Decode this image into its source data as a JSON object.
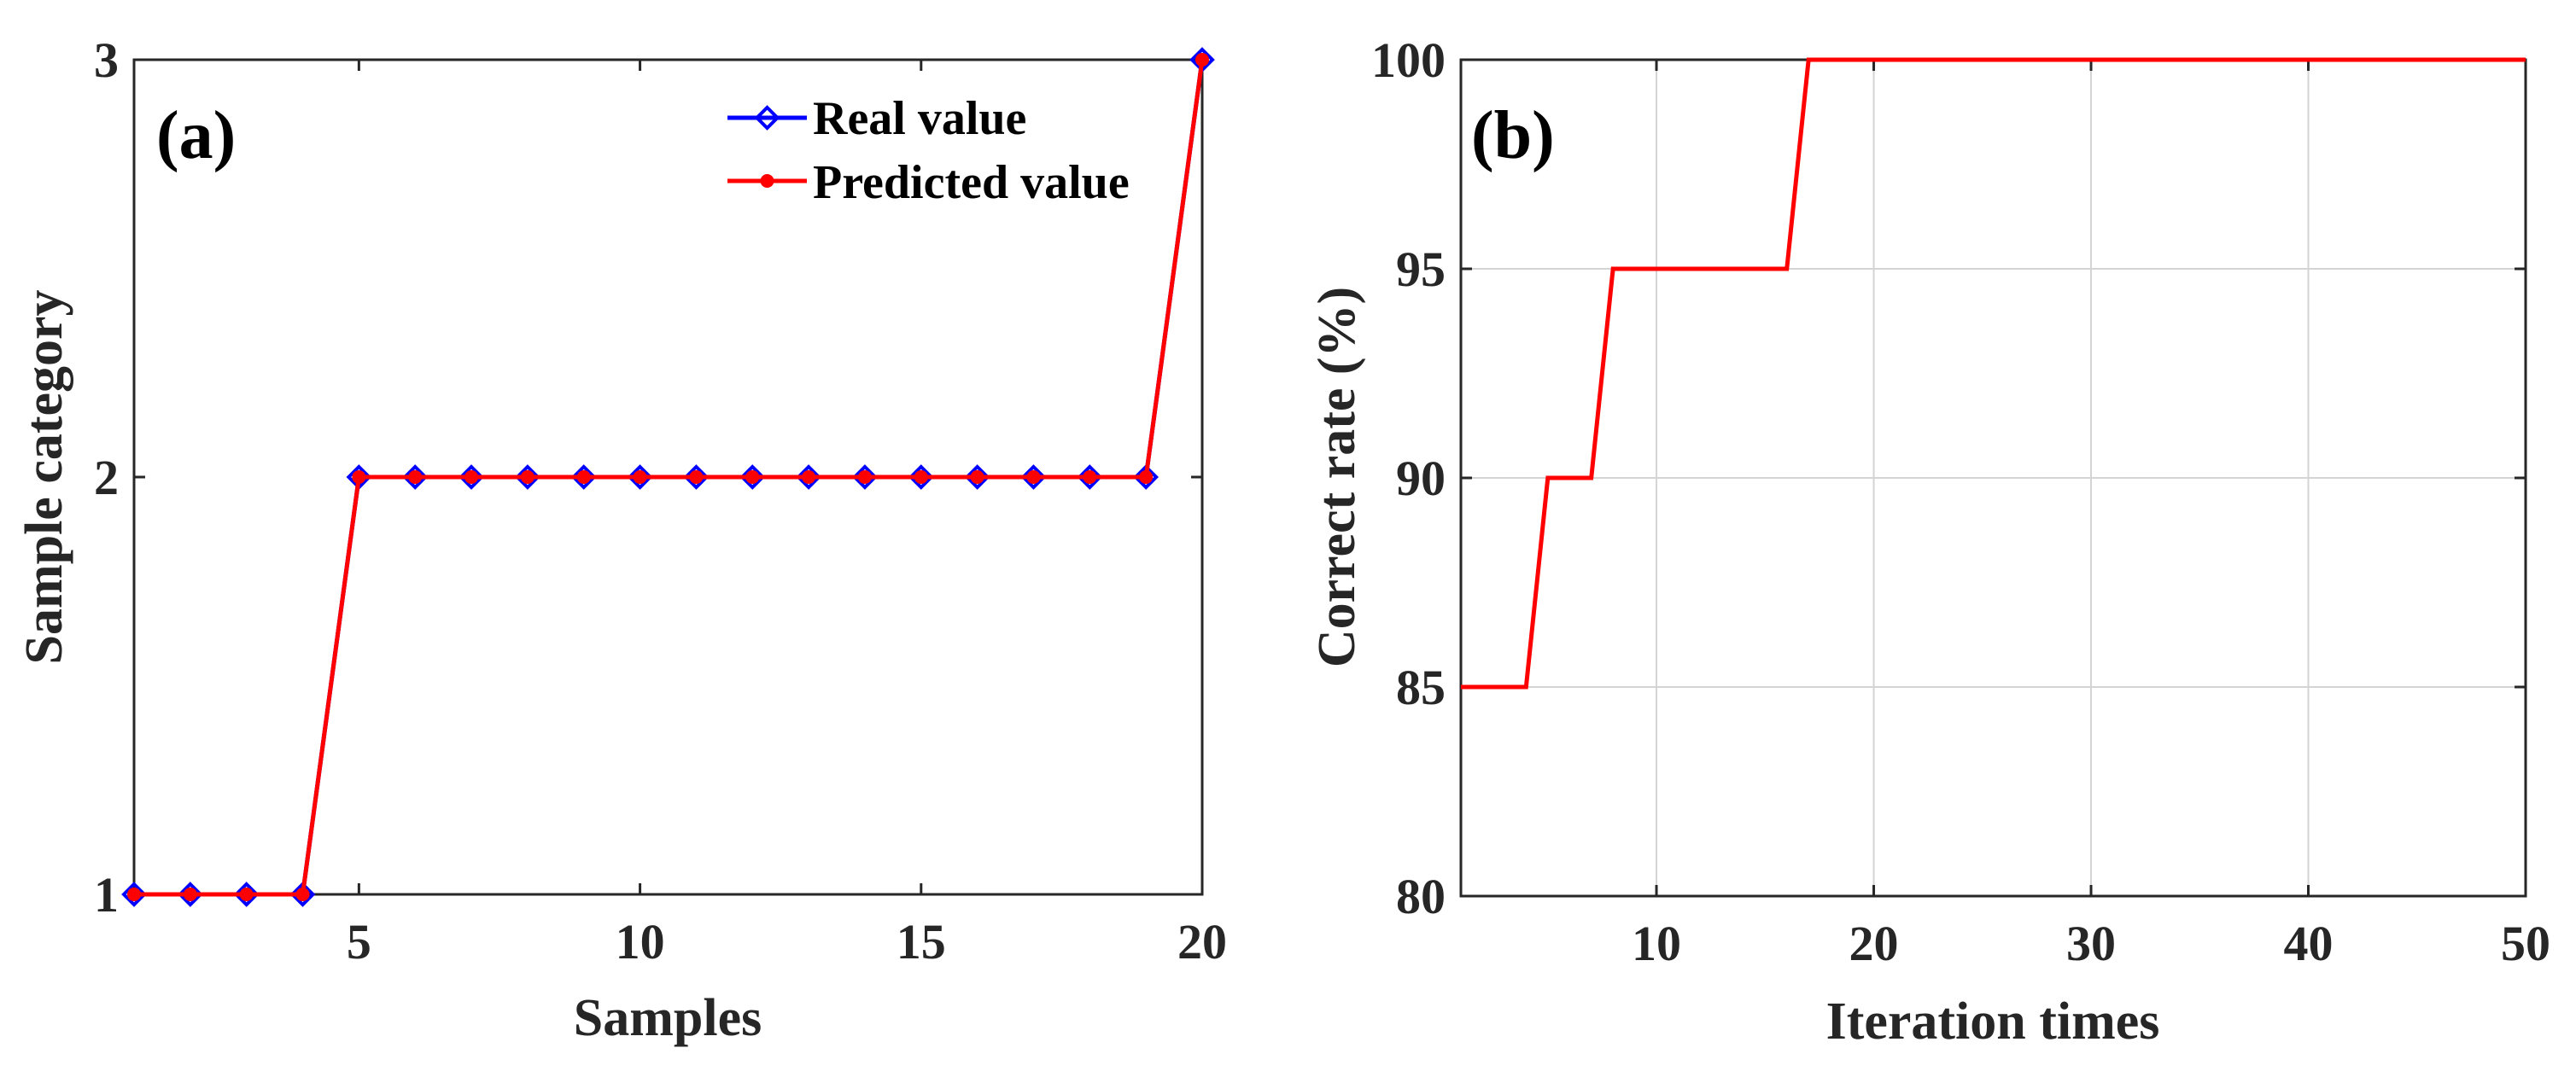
{
  "chart_data": [
    {
      "type": "line",
      "panel_label": "(a)",
      "xlabel": "Samples",
      "ylabel": "Sample category",
      "xlim": [
        1,
        20
      ],
      "ylim": [
        1,
        3
      ],
      "xticks": [
        5,
        10,
        15,
        20
      ],
      "yticks": [
        1,
        2,
        3
      ],
      "grid": false,
      "legend_position": "top-right",
      "x": [
        1,
        2,
        3,
        4,
        5,
        6,
        7,
        8,
        9,
        10,
        11,
        12,
        13,
        14,
        15,
        16,
        17,
        18,
        19,
        20
      ],
      "series": [
        {
          "name": "Real value",
          "color": "#0000ff",
          "marker": "diamond",
          "values": [
            1,
            1,
            1,
            1,
            2,
            2,
            2,
            2,
            2,
            2,
            2,
            2,
            2,
            2,
            2,
            2,
            2,
            2,
            2,
            3
          ]
        },
        {
          "name": "Predicted value",
          "color": "#ff0000",
          "marker": "circle",
          "values": [
            1,
            1,
            1,
            1,
            2,
            2,
            2,
            2,
            2,
            2,
            2,
            2,
            2,
            2,
            2,
            2,
            2,
            2,
            2,
            3
          ]
        }
      ]
    },
    {
      "type": "line",
      "panel_label": "(b)",
      "xlabel": "Iteration times",
      "ylabel": "Correct rate (%)",
      "xlim": [
        1,
        50
      ],
      "ylim": [
        80,
        100
      ],
      "xticks": [
        10,
        20,
        30,
        40,
        50
      ],
      "yticks": [
        80,
        85,
        90,
        95,
        100
      ],
      "grid": true,
      "series": [
        {
          "name": "Correct rate",
          "color": "#ff0000",
          "x": [
            1,
            4,
            5,
            7,
            8,
            16,
            17,
            50
          ],
          "values": [
            85,
            85,
            90,
            90,
            95,
            95,
            100,
            100
          ]
        }
      ]
    }
  ]
}
